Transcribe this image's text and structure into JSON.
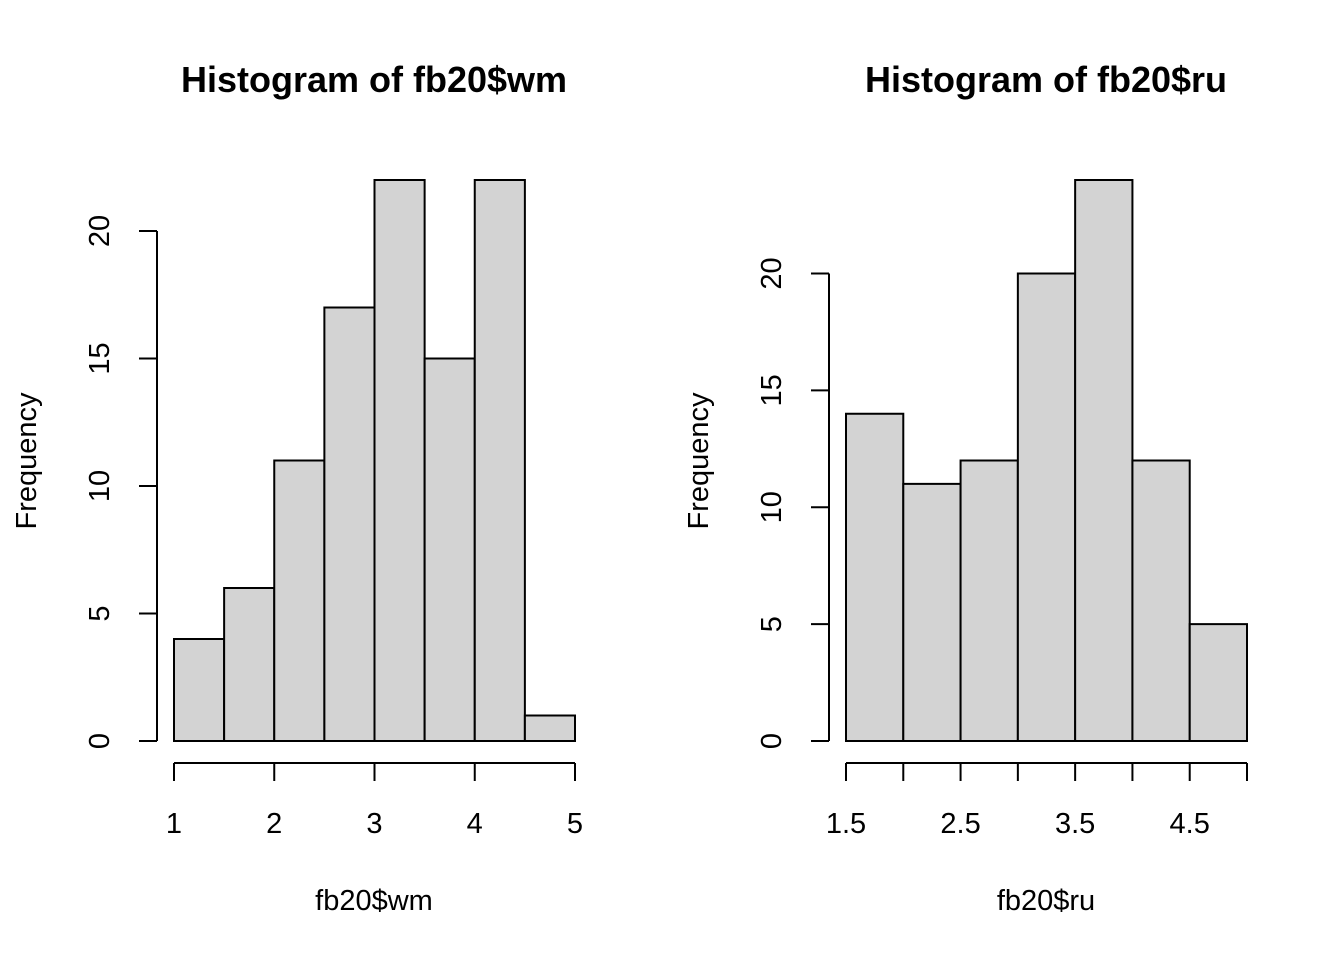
{
  "chart_data": [
    {
      "type": "bar",
      "title": "Histogram of fb20$wm",
      "xlabel": "fb20$wm",
      "ylabel": "Frequency",
      "bins": [
        [
          1.0,
          1.5
        ],
        [
          1.5,
          2.0
        ],
        [
          2.0,
          2.5
        ],
        [
          2.5,
          3.0
        ],
        [
          3.0,
          3.5
        ],
        [
          3.5,
          4.0
        ],
        [
          4.0,
          4.5
        ],
        [
          4.5,
          5.0
        ]
      ],
      "values": [
        4,
        6,
        11,
        17,
        22,
        15,
        22,
        1
      ],
      "xlim": [
        1,
        5
      ],
      "ylim": [
        0,
        22
      ],
      "xticks": [
        1,
        2,
        3,
        4,
        5
      ],
      "xtick_labels": [
        "1",
        "2",
        "3",
        "4",
        "5"
      ],
      "yticks": [
        0,
        5,
        10,
        15,
        20
      ],
      "ytick_labels": [
        "0",
        "5",
        "10",
        "15",
        "20"
      ],
      "bar_color": "#d3d3d3",
      "grid": false
    },
    {
      "type": "bar",
      "title": "Histogram of fb20$ru",
      "xlabel": "fb20$ru",
      "ylabel": "Frequency",
      "bins": [
        [
          1.5,
          2.0
        ],
        [
          2.0,
          2.5
        ],
        [
          2.5,
          3.0
        ],
        [
          3.0,
          3.5
        ],
        [
          3.5,
          4.0
        ],
        [
          4.0,
          4.5
        ],
        [
          4.5,
          5.0
        ]
      ],
      "values": [
        14,
        11,
        12,
        20,
        24,
        12,
        5
      ],
      "xlim": [
        1.5,
        5
      ],
      "ylim": [
        0,
        24
      ],
      "xticks": [
        1.5,
        2.0,
        2.5,
        3.0,
        3.5,
        4.0,
        4.5,
        5.0
      ],
      "xtick_labels": [
        "1.5",
        "",
        "2.5",
        "",
        "3.5",
        "",
        "4.5",
        ""
      ],
      "yticks": [
        0,
        5,
        10,
        15,
        20
      ],
      "ytick_labels": [
        "0",
        "5",
        "10",
        "15",
        "20"
      ],
      "bar_color": "#d3d3d3",
      "grid": false
    }
  ]
}
